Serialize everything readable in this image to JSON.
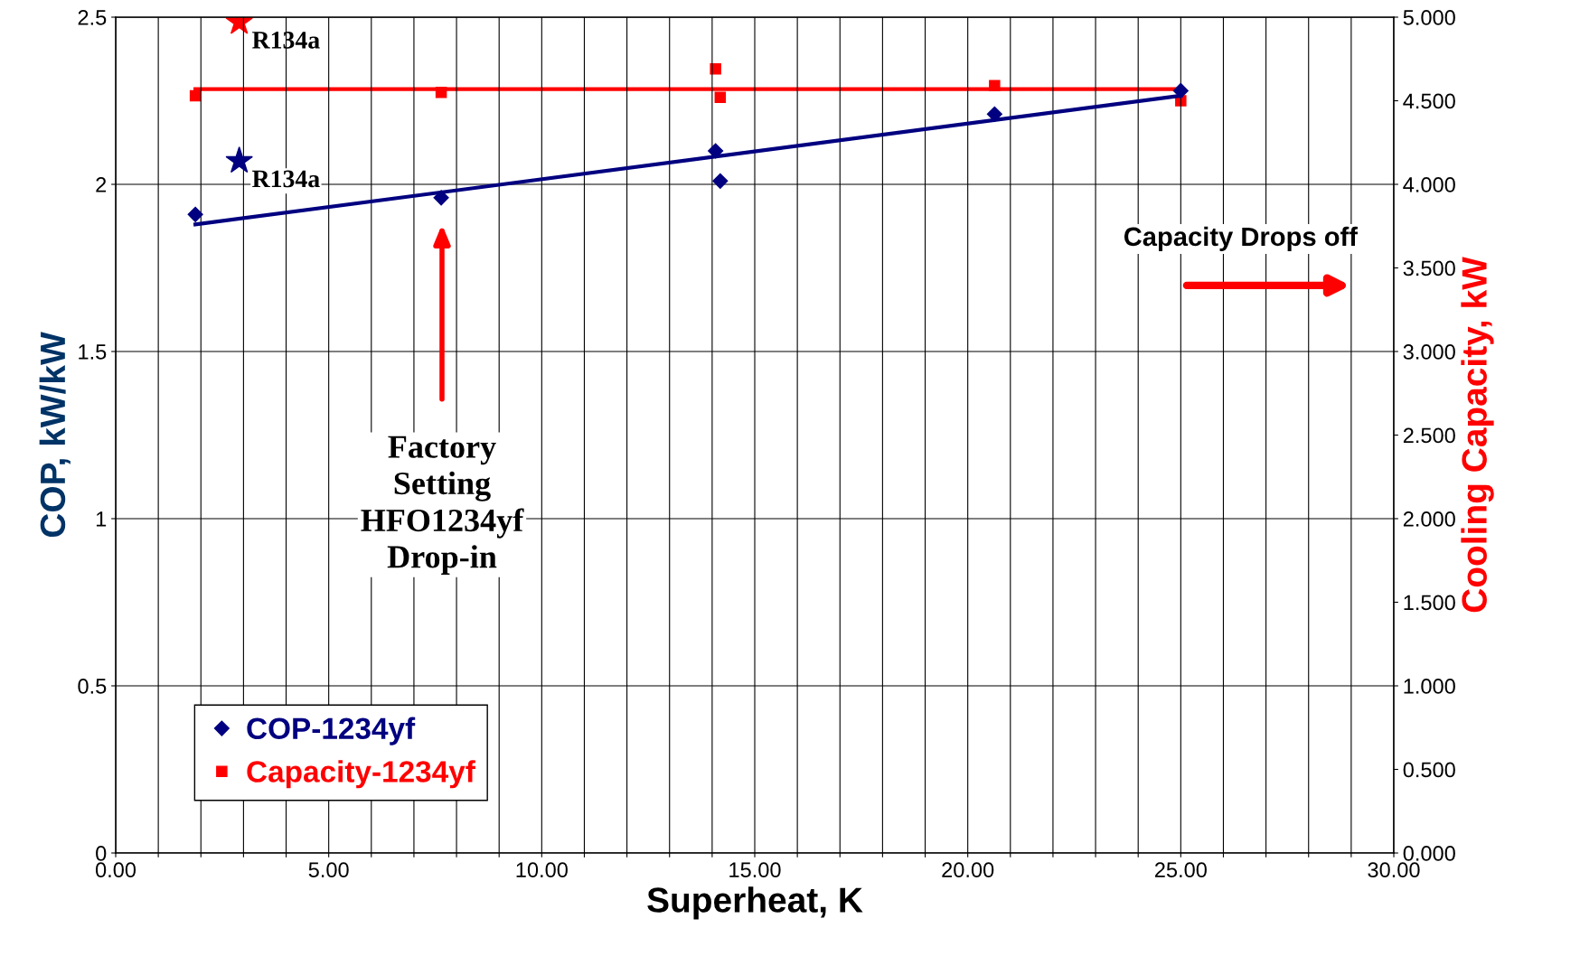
{
  "chart_data": {
    "type": "scatter",
    "xlabel": "Superheat, K",
    "ylabel": "COP, kW/kW",
    "y2label": "Cooling Capacity, kW",
    "xlim": [
      0,
      30
    ],
    "xticks": [
      {
        "value": 0,
        "label": "0.00"
      },
      {
        "value": 1,
        "label": null
      },
      {
        "value": 2,
        "label": null
      },
      {
        "value": 3,
        "label": null
      },
      {
        "value": 4,
        "label": null
      },
      {
        "value": 5,
        "label": "5.00"
      },
      {
        "value": 6,
        "label": null
      },
      {
        "value": 7,
        "label": null
      },
      {
        "value": 8,
        "label": null
      },
      {
        "value": 9,
        "label": null
      },
      {
        "value": 10,
        "label": "10.00"
      },
      {
        "value": 11,
        "label": null
      },
      {
        "value": 12,
        "label": null
      },
      {
        "value": 13,
        "label": null
      },
      {
        "value": 14,
        "label": null
      },
      {
        "value": 15,
        "label": "15.00"
      },
      {
        "value": 16,
        "label": null
      },
      {
        "value": 17,
        "label": null
      },
      {
        "value": 18,
        "label": null
      },
      {
        "value": 19,
        "label": null
      },
      {
        "value": 20,
        "label": "20.00"
      },
      {
        "value": 21,
        "label": null
      },
      {
        "value": 22,
        "label": null
      },
      {
        "value": 23,
        "label": null
      },
      {
        "value": 24,
        "label": null
      },
      {
        "value": 25,
        "label": "25.00"
      },
      {
        "value": 26,
        "label": null
      },
      {
        "value": 27,
        "label": null
      },
      {
        "value": 28,
        "label": null
      },
      {
        "value": 29,
        "label": null
      },
      {
        "value": 30,
        "label": "30.00"
      }
    ],
    "ylim": [
      0,
      2.5
    ],
    "yticks": [
      0,
      0.5,
      1,
      1.5,
      2,
      2.5
    ],
    "y2lim": [
      0,
      5
    ],
    "y2ticks": [
      {
        "value": 0,
        "label": "0.000"
      },
      {
        "value": 0.5,
        "label": "0.500"
      },
      {
        "value": 1,
        "label": "1.000"
      },
      {
        "value": 1.5,
        "label": "1.500"
      },
      {
        "value": 2,
        "label": "2.000"
      },
      {
        "value": 2.5,
        "label": "2.500"
      },
      {
        "value": 3,
        "label": "3.000"
      },
      {
        "value": 3.5,
        "label": "3.500"
      },
      {
        "value": 4,
        "label": "4.000"
      },
      {
        "value": 4.5,
        "label": "4.500"
      },
      {
        "value": 5,
        "label": "5.000"
      }
    ],
    "grid": true,
    "legend": "bottom left",
    "series": [
      {
        "name": "COP-1234yf",
        "marker": "diamond",
        "color": "#000080",
        "x": [
          1.87,
          7.64,
          14.08,
          14.19,
          20.63,
          25.0
        ],
        "values": [
          1.91,
          1.96,
          2.1,
          2.01,
          2.21,
          2.28
        ]
      },
      {
        "name": "Capacity-1234yf",
        "marker": "square",
        "color": "#ff0000",
        "axis": "y2",
        "x": [
          1.87,
          7.64,
          14.08,
          14.19,
          20.63,
          25.0
        ],
        "values": [
          4.53,
          4.55,
          4.69,
          4.52,
          4.59,
          4.5
        ]
      },
      {
        "type": "line",
        "marker": "none",
        "line_style": "solid",
        "color": "#000080",
        "x": [
          1.87,
          25.0
        ],
        "values": [
          1.88,
          2.265
        ]
      },
      {
        "type": "line",
        "marker": "none",
        "line_style": "solid",
        "color": "#ff0000",
        "axis": "y2",
        "x": [
          1.87,
          25.0
        ],
        "values": [
          4.57,
          4.57
        ]
      },
      {
        "name": "R134a",
        "marker": "star",
        "color": "#000080",
        "x": [
          2.9
        ],
        "values": [
          2.07
        ]
      },
      {
        "name": "R134a",
        "marker": "star",
        "color": "#ff0000",
        "axis": "y2",
        "x": [
          2.9
        ],
        "values": [
          4.97
        ]
      }
    ],
    "annotations": [
      "Factory\nSetting\nHFO1234yf\nDrop-in",
      "Capacity Drops off"
    ]
  }
}
